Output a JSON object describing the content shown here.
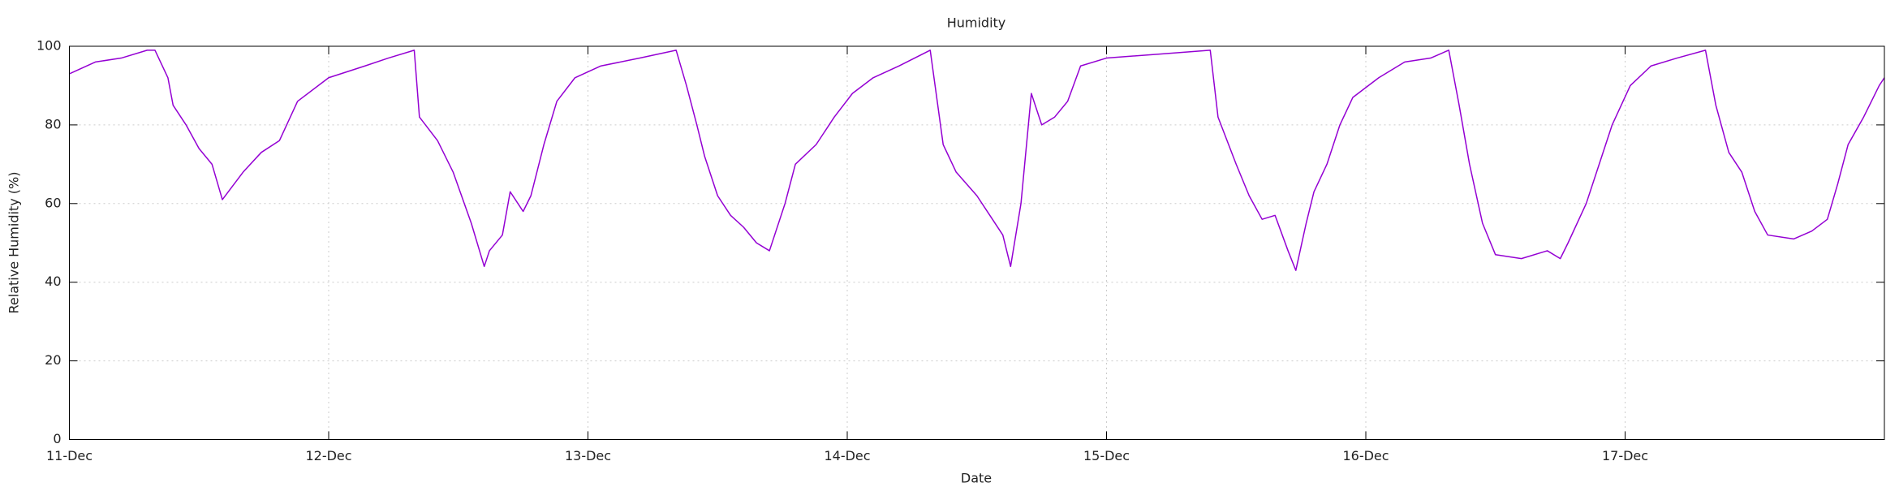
{
  "chart_data": {
    "type": "line",
    "title": "Humidity",
    "xlabel": "Date",
    "ylabel": "Relative Humidity (%)",
    "x": [
      0,
      0.1,
      0.2,
      0.3,
      0.33,
      0.38,
      0.4,
      0.45,
      0.5,
      0.55,
      0.59,
      0.67,
      0.74,
      0.81,
      0.88,
      1.0,
      1.14,
      1.23,
      1.33,
      1.35,
      1.42,
      1.48,
      1.55,
      1.6,
      1.62,
      1.67,
      1.7,
      1.75,
      1.78,
      1.83,
      1.88,
      1.95,
      2.05,
      2.2,
      2.34,
      2.38,
      2.42,
      2.45,
      2.5,
      2.55,
      2.6,
      2.65,
      2.7,
      2.76,
      2.8,
      2.88,
      2.95,
      3.02,
      3.1,
      3.2,
      3.32,
      3.37,
      3.42,
      3.5,
      3.55,
      3.6,
      3.63,
      3.67,
      3.71,
      3.75,
      3.8,
      3.85,
      3.9,
      4.0,
      4.2,
      4.4,
      4.43,
      4.5,
      4.55,
      4.6,
      4.65,
      4.7,
      4.73,
      4.77,
      4.8,
      4.85,
      4.9,
      4.95,
      5.05,
      5.15,
      5.25,
      5.32,
      5.36,
      5.4,
      5.45,
      5.5,
      5.6,
      5.7,
      5.75,
      5.78,
      5.85,
      5.9,
      5.95,
      6.02,
      6.1,
      6.2,
      6.31,
      6.35,
      6.4,
      6.45,
      6.5,
      6.55,
      6.65,
      6.72,
      6.78,
      6.82,
      6.86,
      6.92,
      6.98,
      7.0
    ],
    "series": [
      {
        "name": "Humidity",
        "color": "#9400d3",
        "values": [
          93,
          96,
          97,
          99,
          99,
          92,
          85,
          80,
          74,
          70,
          61,
          68,
          73,
          76,
          86,
          92,
          95,
          97,
          99,
          82,
          76,
          68,
          55,
          44,
          48,
          52,
          63,
          58,
          62,
          75,
          86,
          92,
          95,
          97,
          99,
          90,
          80,
          72,
          62,
          57,
          54,
          50,
          48,
          60,
          70,
          75,
          82,
          88,
          92,
          95,
          99,
          75,
          68,
          62,
          57,
          52,
          44,
          60,
          88,
          80,
          82,
          86,
          95,
          97,
          98,
          99,
          82,
          70,
          62,
          56,
          57,
          48,
          43,
          55,
          63,
          70,
          80,
          87,
          92,
          96,
          97,
          99,
          85,
          70,
          55,
          47,
          46,
          48,
          46,
          50,
          60,
          70,
          80,
          90,
          95,
          97,
          99,
          85,
          73,
          68,
          58,
          52,
          51,
          53,
          56,
          65,
          75,
          82,
          90,
          92
        ]
      }
    ],
    "xlim": [
      0,
      7
    ],
    "xticks": [
      {
        "value": 0,
        "label": "11-Dec"
      },
      {
        "value": 1,
        "label": "12-Dec"
      },
      {
        "value": 2,
        "label": "13-Dec"
      },
      {
        "value": 3,
        "label": "14-Dec"
      },
      {
        "value": 4,
        "label": "15-Dec"
      },
      {
        "value": 5,
        "label": "16-Dec"
      },
      {
        "value": 6,
        "label": "17-Dec"
      }
    ],
    "ylim": [
      0,
      100
    ],
    "yticks": [
      0,
      20,
      40,
      60,
      80,
      100
    ],
    "grid": true
  }
}
